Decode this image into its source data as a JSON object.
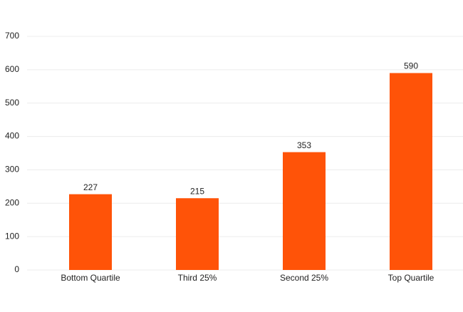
{
  "chart_data": {
    "type": "bar",
    "categories": [
      "Bottom Quartile",
      "Third 25%",
      "Second 25%",
      "Top Quartile"
    ],
    "values": [
      227,
      215,
      353,
      590
    ],
    "color": "#ff5308",
    "ylim": [
      0,
      700
    ],
    "yticks": [
      0,
      100,
      200,
      300,
      400,
      500,
      600,
      700
    ],
    "grid": true
  }
}
